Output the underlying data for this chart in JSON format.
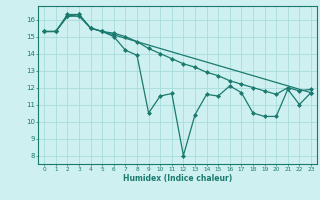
{
  "title": "",
  "xlabel": "Humidex (Indice chaleur)",
  "ylabel": "",
  "bg_color": "#cff0f0",
  "grid_color": "#a8dcdc",
  "line_color": "#1a7a6e",
  "xlim": [
    -0.5,
    23.5
  ],
  "ylim": [
    7.5,
    16.8
  ],
  "yticks": [
    8,
    9,
    10,
    11,
    12,
    13,
    14,
    15,
    16
  ],
  "xticks": [
    0,
    1,
    2,
    3,
    4,
    5,
    6,
    7,
    8,
    9,
    10,
    11,
    12,
    13,
    14,
    15,
    16,
    17,
    18,
    19,
    20,
    21,
    22,
    23
  ],
  "line1_x": [
    0,
    1,
    2,
    3,
    4,
    5,
    6,
    7,
    8,
    9,
    10,
    11,
    12,
    13,
    14,
    15,
    16,
    17,
    18,
    19,
    20,
    21,
    22,
    23
  ],
  "line1_y": [
    15.3,
    15.3,
    16.2,
    16.3,
    15.5,
    15.3,
    15.0,
    14.2,
    13.9,
    10.5,
    11.5,
    11.65,
    8.0,
    10.4,
    11.6,
    11.5,
    12.1,
    11.7,
    10.5,
    10.3,
    10.3,
    11.9,
    11.0,
    11.7
  ],
  "line2_x": [
    0,
    1,
    2,
    3,
    4,
    5,
    6,
    23
  ],
  "line2_y": [
    15.3,
    15.3,
    16.3,
    16.3,
    15.5,
    15.3,
    15.1,
    11.7
  ],
  "line3_x": [
    0,
    1,
    2,
    3,
    4,
    5,
    6,
    7,
    8,
    9,
    10,
    11,
    12,
    13,
    14,
    15,
    16,
    17,
    18,
    19,
    20,
    21,
    22,
    23
  ],
  "line3_y": [
    15.3,
    15.3,
    16.2,
    16.2,
    15.5,
    15.3,
    15.2,
    15.0,
    14.7,
    14.3,
    14.0,
    13.7,
    13.4,
    13.2,
    12.9,
    12.7,
    12.4,
    12.2,
    12.0,
    11.8,
    11.6,
    12.0,
    11.8,
    11.9
  ]
}
